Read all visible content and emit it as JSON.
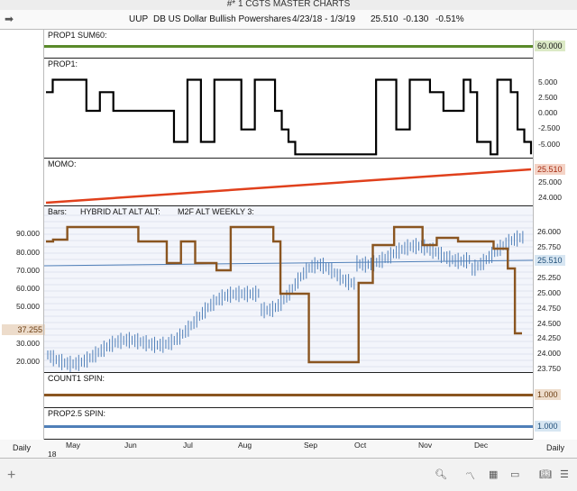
{
  "window": {
    "title": "#* 1 CGTS MASTER CHARTS"
  },
  "header": {
    "ticker": "UUP",
    "name": "DB US Dollar Bullish Powershares",
    "range": "4/23/18 - 1/3/19",
    "last": "25.510",
    "change": "-0.130",
    "pct": "-0.51%"
  },
  "panels": {
    "sum60": {
      "label": "PROP1 SUM60:",
      "value": "60.000"
    },
    "prop1": {
      "label": "PROP1:",
      "ticks": [
        "5.000",
        "2.500",
        "0.000",
        "-2.500",
        "-5.000"
      ]
    },
    "momo": {
      "label": "MOMO:",
      "value": "25.510",
      "ticks": [
        "25.000",
        "24.000"
      ]
    },
    "main": {
      "label_bars": "Bars:",
      "label_hybrid": "HYBRID ALT ALT ALT:",
      "label_m2f": "M2F ALT WEEKLY 3:",
      "left_ticks": [
        "90.000",
        "80.000",
        "70.000",
        "60.000",
        "50.000",
        "30.000",
        "20.000"
      ],
      "left_badge": "37.255",
      "right_ticks": [
        "26.000",
        "25.750",
        "25.250",
        "25.000",
        "24.750",
        "24.500",
        "24.250",
        "24.000",
        "23.750"
      ],
      "right_badge": "25.510"
    },
    "count1": {
      "label": "COUNT1 SPIN:",
      "value": "1.000"
    },
    "prop25": {
      "label": "PROP2.5 SPIN:",
      "value": "1.000"
    }
  },
  "axis": {
    "months": [
      "May",
      "Jun",
      "Jul",
      "Aug",
      "Sep",
      "Oct",
      "Nov",
      "Dec"
    ],
    "year_label": "18",
    "period_left": "Daily",
    "period_right": "Daily"
  },
  "colors": {
    "sum60": "#5a8a2a",
    "momo": "#e0401c",
    "hybrid": "#8a5520",
    "blue": "#4f7fb8"
  },
  "chart_data": [
    {
      "type": "line",
      "series": [
        {
          "name": "PROP1",
          "values": [
            3,
            5,
            5,
            5,
            5,
            5,
            0,
            0,
            3,
            3,
            0,
            0,
            0,
            0,
            0,
            0,
            0,
            0,
            0,
            -5,
            -5,
            5,
            5,
            -5,
            -5,
            5,
            5,
            5,
            5,
            -3,
            -3,
            5,
            5,
            5,
            0,
            -3,
            -5,
            -7,
            -7,
            -7,
            -7,
            -7,
            -7,
            -7,
            -7,
            -7,
            -7,
            -7,
            -7,
            5,
            5,
            5,
            -3,
            -3,
            5,
            5,
            5,
            3,
            3,
            0,
            0,
            0,
            5,
            3,
            -5,
            -5,
            -7,
            5,
            5,
            3,
            -3,
            -5,
            -7
          ]
        }
      ]
    },
    {
      "type": "line",
      "series": [
        {
          "name": "HYBRID ALT ALT ALT",
          "values": [
            87,
            88,
            88,
            95,
            95,
            95,
            95,
            95,
            95,
            95,
            95,
            95,
            95,
            87,
            87,
            87,
            87,
            75,
            75,
            87,
            87,
            75,
            75,
            75,
            71,
            71,
            95,
            95,
            95,
            95,
            95,
            95,
            87,
            58,
            58,
            58,
            58,
            20,
            20,
            20,
            20,
            20,
            20,
            20,
            64,
            64,
            85,
            85,
            85,
            95,
            95,
            95,
            95,
            85,
            85,
            89,
            89,
            89,
            87,
            87,
            87,
            87,
            87,
            83,
            83,
            72,
            36,
            36
          ]
        }
      ]
    }
  ]
}
